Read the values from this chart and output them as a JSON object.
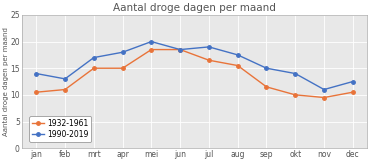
{
  "title": "Aantal droge dagen per maand",
  "ylabel": "Aantal droge dagen per maand",
  "months": [
    "jan",
    "feb",
    "mrt",
    "apr",
    "mei",
    "jun",
    "jul",
    "aug",
    "sep",
    "okt",
    "nov",
    "dec"
  ],
  "series_1932": [
    10.5,
    11.0,
    15.0,
    15.0,
    18.5,
    18.5,
    16.5,
    15.5,
    11.5,
    10.0,
    9.5,
    10.5
  ],
  "series_1990": [
    14.0,
    13.0,
    17.0,
    18.0,
    20.0,
    18.5,
    19.0,
    17.5,
    15.0,
    14.0,
    11.0,
    12.5
  ],
  "color_1932": "#E8743A",
  "color_1990": "#4472C4",
  "ylim": [
    0,
    25
  ],
  "yticks": [
    0,
    5,
    10,
    15,
    20,
    25
  ],
  "legend_1932": "1932-1961",
  "legend_1990": "1990-2019",
  "bg_color": "#FFFFFF",
  "plot_bg_color": "#E8E8E8",
  "grid_color": "#FFFFFF",
  "title_fontsize": 7.5,
  "label_fontsize": 5.0,
  "tick_fontsize": 5.5,
  "legend_fontsize": 5.5,
  "linewidth": 1.0,
  "markersize": 2.5
}
